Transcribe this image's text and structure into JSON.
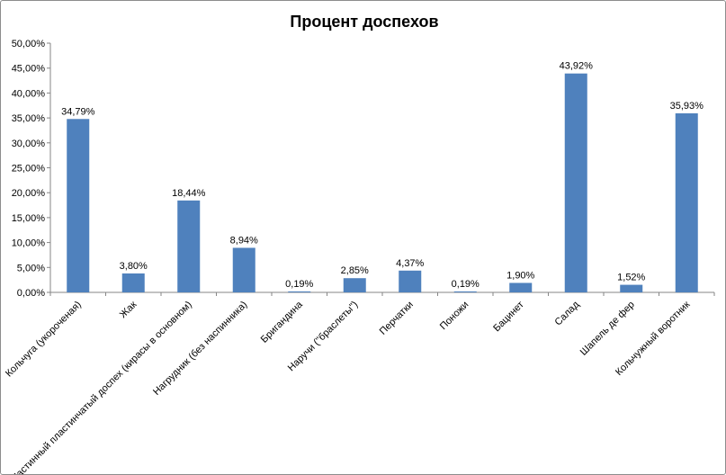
{
  "chart_data": {
    "type": "bar",
    "title": "Процент доспехов",
    "categories": [
      "Кольчуга (укороченая)",
      "Жак",
      "Частинный пластинчатый доспех (кирасы в основном)",
      "Нагрудник (без наспинника)",
      "Бригандина",
      "Наручи (\"браслеты\")",
      "Перчатки",
      "Поножи",
      "Бацинет",
      "Салад",
      "Шапель де фер",
      "Кольчужный воротник"
    ],
    "values": [
      34.79,
      3.8,
      18.44,
      8.94,
      0.19,
      2.85,
      4.37,
      0.19,
      1.9,
      43.92,
      1.52,
      35.93
    ],
    "data_labels": [
      "34,79%",
      "3,80%",
      "18,44%",
      "8,94%",
      "0,19%",
      "2,85%",
      "4,37%",
      "0,19%",
      "1,90%",
      "43,92%",
      "1,52%",
      "35,93%"
    ],
    "y_ticks": [
      "0,00%",
      "5,00%",
      "10,00%",
      "15,00%",
      "20,00%",
      "25,00%",
      "30,00%",
      "35,00%",
      "40,00%",
      "45,00%",
      "50,00%"
    ],
    "ylim": [
      0,
      50
    ],
    "grid": false,
    "legend": "none",
    "bar_color": "#4f81bd",
    "xlabel": "",
    "ylabel": ""
  }
}
